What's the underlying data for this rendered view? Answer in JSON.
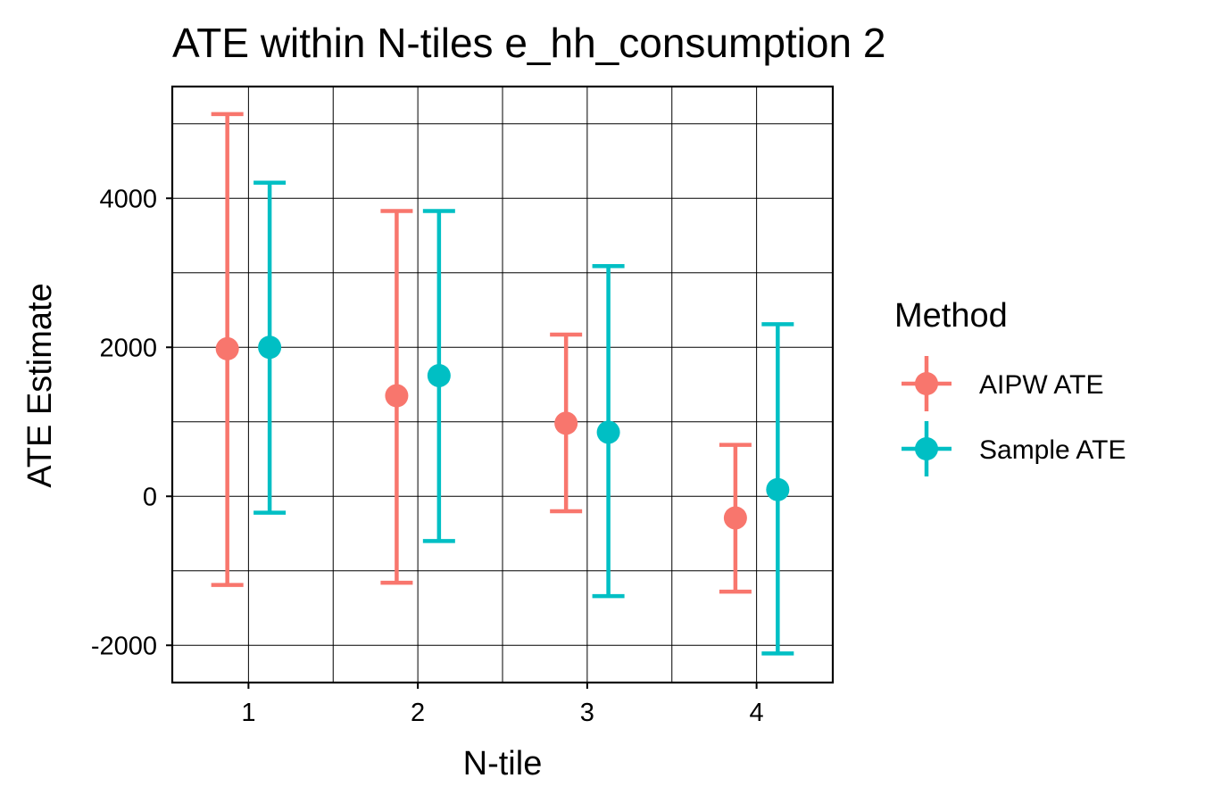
{
  "chart_data": {
    "type": "errorbar",
    "title": "ATE within N-tiles e_hh_consumption 2",
    "xlabel": "N-tile",
    "ylabel": "ATE Estimate",
    "categories": [
      "1",
      "2",
      "3",
      "4"
    ],
    "ylim": [
      -2500,
      5500
    ],
    "yticks": [
      -2000,
      0,
      2000,
      4000
    ],
    "grid": true,
    "legend": {
      "title": "Method",
      "position": "right"
    },
    "series": [
      {
        "name": "AIPW ATE",
        "color": "#F8766D",
        "estimate": [
          1980,
          1350,
          980,
          -290
        ],
        "lower": [
          -1190,
          -1160,
          -200,
          -1280
        ],
        "upper": [
          5130,
          3830,
          2170,
          690
        ]
      },
      {
        "name": "Sample ATE",
        "color": "#00BFC4",
        "estimate": [
          2000,
          1620,
          860,
          90
        ],
        "lower": [
          -220,
          -600,
          -1340,
          -2110
        ],
        "upper": [
          4210,
          3830,
          3090,
          2310
        ]
      }
    ]
  }
}
